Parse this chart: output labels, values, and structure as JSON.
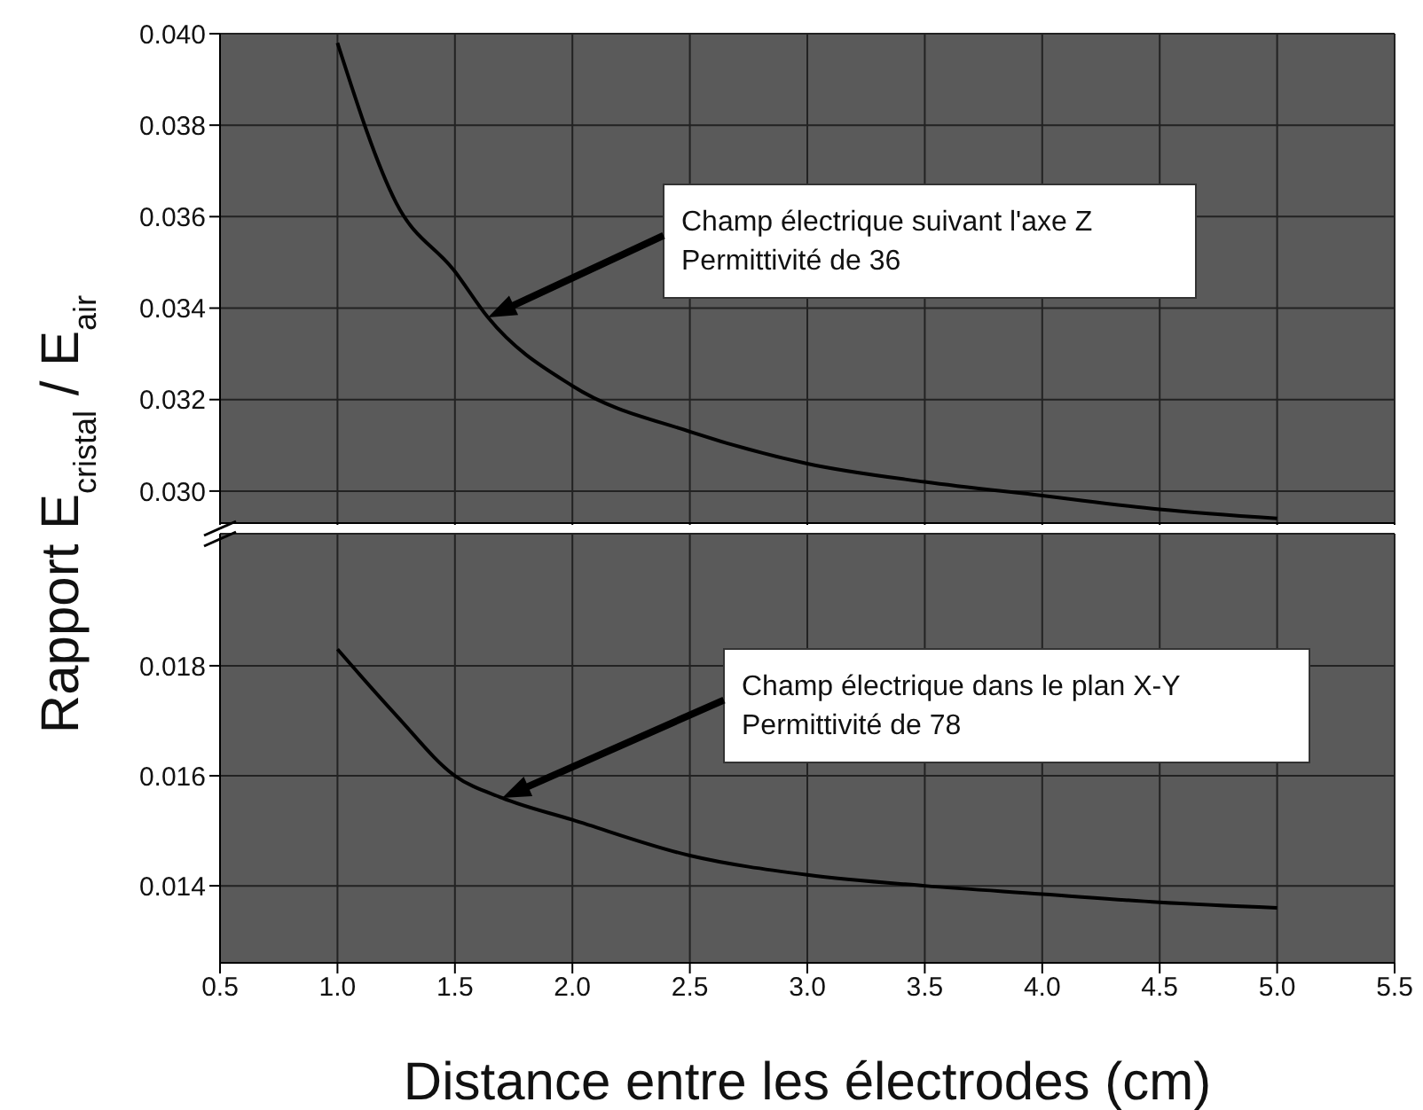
{
  "chart_data": [
    {
      "type": "line",
      "ylabel": "Rapport  E$_{cristal}$ / E$_{air}$",
      "x": [
        1.0,
        1.25,
        1.5,
        1.64,
        2.0,
        2.5,
        3.0,
        3.5,
        4.0,
        4.5,
        5.0
      ],
      "series": [
        {
          "color": "#000000",
          "values": [
            0.0398,
            0.0363,
            0.0348,
            0.0338,
            0.0323,
            0.0313,
            0.0306,
            0.0302,
            0.0299,
            0.0296,
            0.0294
          ]
        }
      ],
      "xlim": [
        0.5,
        5.5
      ],
      "xticks": [
        0.5,
        1,
        1.5,
        2,
        2.5,
        3,
        3.5,
        4,
        4.5,
        5,
        5.5
      ],
      "ylim": [
        0.0293,
        0.04
      ],
      "yticks": [
        {
          "value": 0.03,
          "label": "0.030"
        },
        0.032,
        0.034,
        0.036,
        0.038,
        {
          "value": 0.04,
          "label": "0.040"
        }
      ],
      "grid": true,
      "tick_labels": "y",
      "marker": "none",
      "annotations": [
        "Champ électrique suivant l'axe Z\nPermittivité de 36"
      ]
    },
    {
      "type": "line",
      "xlabel": "Distance entre les électrodes (cm)",
      "x": [
        1.0,
        1.25,
        1.5,
        1.7,
        2.0,
        2.5,
        3.0,
        3.5,
        4.0,
        4.5,
        5.0
      ],
      "series": [
        {
          "color": "#000000",
          "values": [
            0.0183,
            0.0171,
            0.016,
            0.0156,
            0.0152,
            0.01455,
            0.0142,
            0.014,
            0.01385,
            0.0137,
            0.0136
          ]
        }
      ],
      "xlim": [
        0.5,
        5.5
      ],
      "xticks": [
        0.5,
        {
          "value": 1,
          "label": "1.0"
        },
        1.5,
        {
          "value": 2,
          "label": "2.0"
        },
        2.5,
        {
          "value": 3,
          "label": "3.0"
        },
        3.5,
        {
          "value": 4,
          "label": "4.0"
        },
        4.5,
        {
          "value": 5,
          "label": "5.0"
        },
        5.5
      ],
      "ylim": [
        0.0126,
        0.0204
      ],
      "yticks": [
        0.014,
        0.016,
        0.018
      ],
      "grid": true,
      "marker": "none",
      "annotations": [
        "Champ électrique dans le plan X-Y\nPermittivité de 78"
      ]
    }
  ]
}
